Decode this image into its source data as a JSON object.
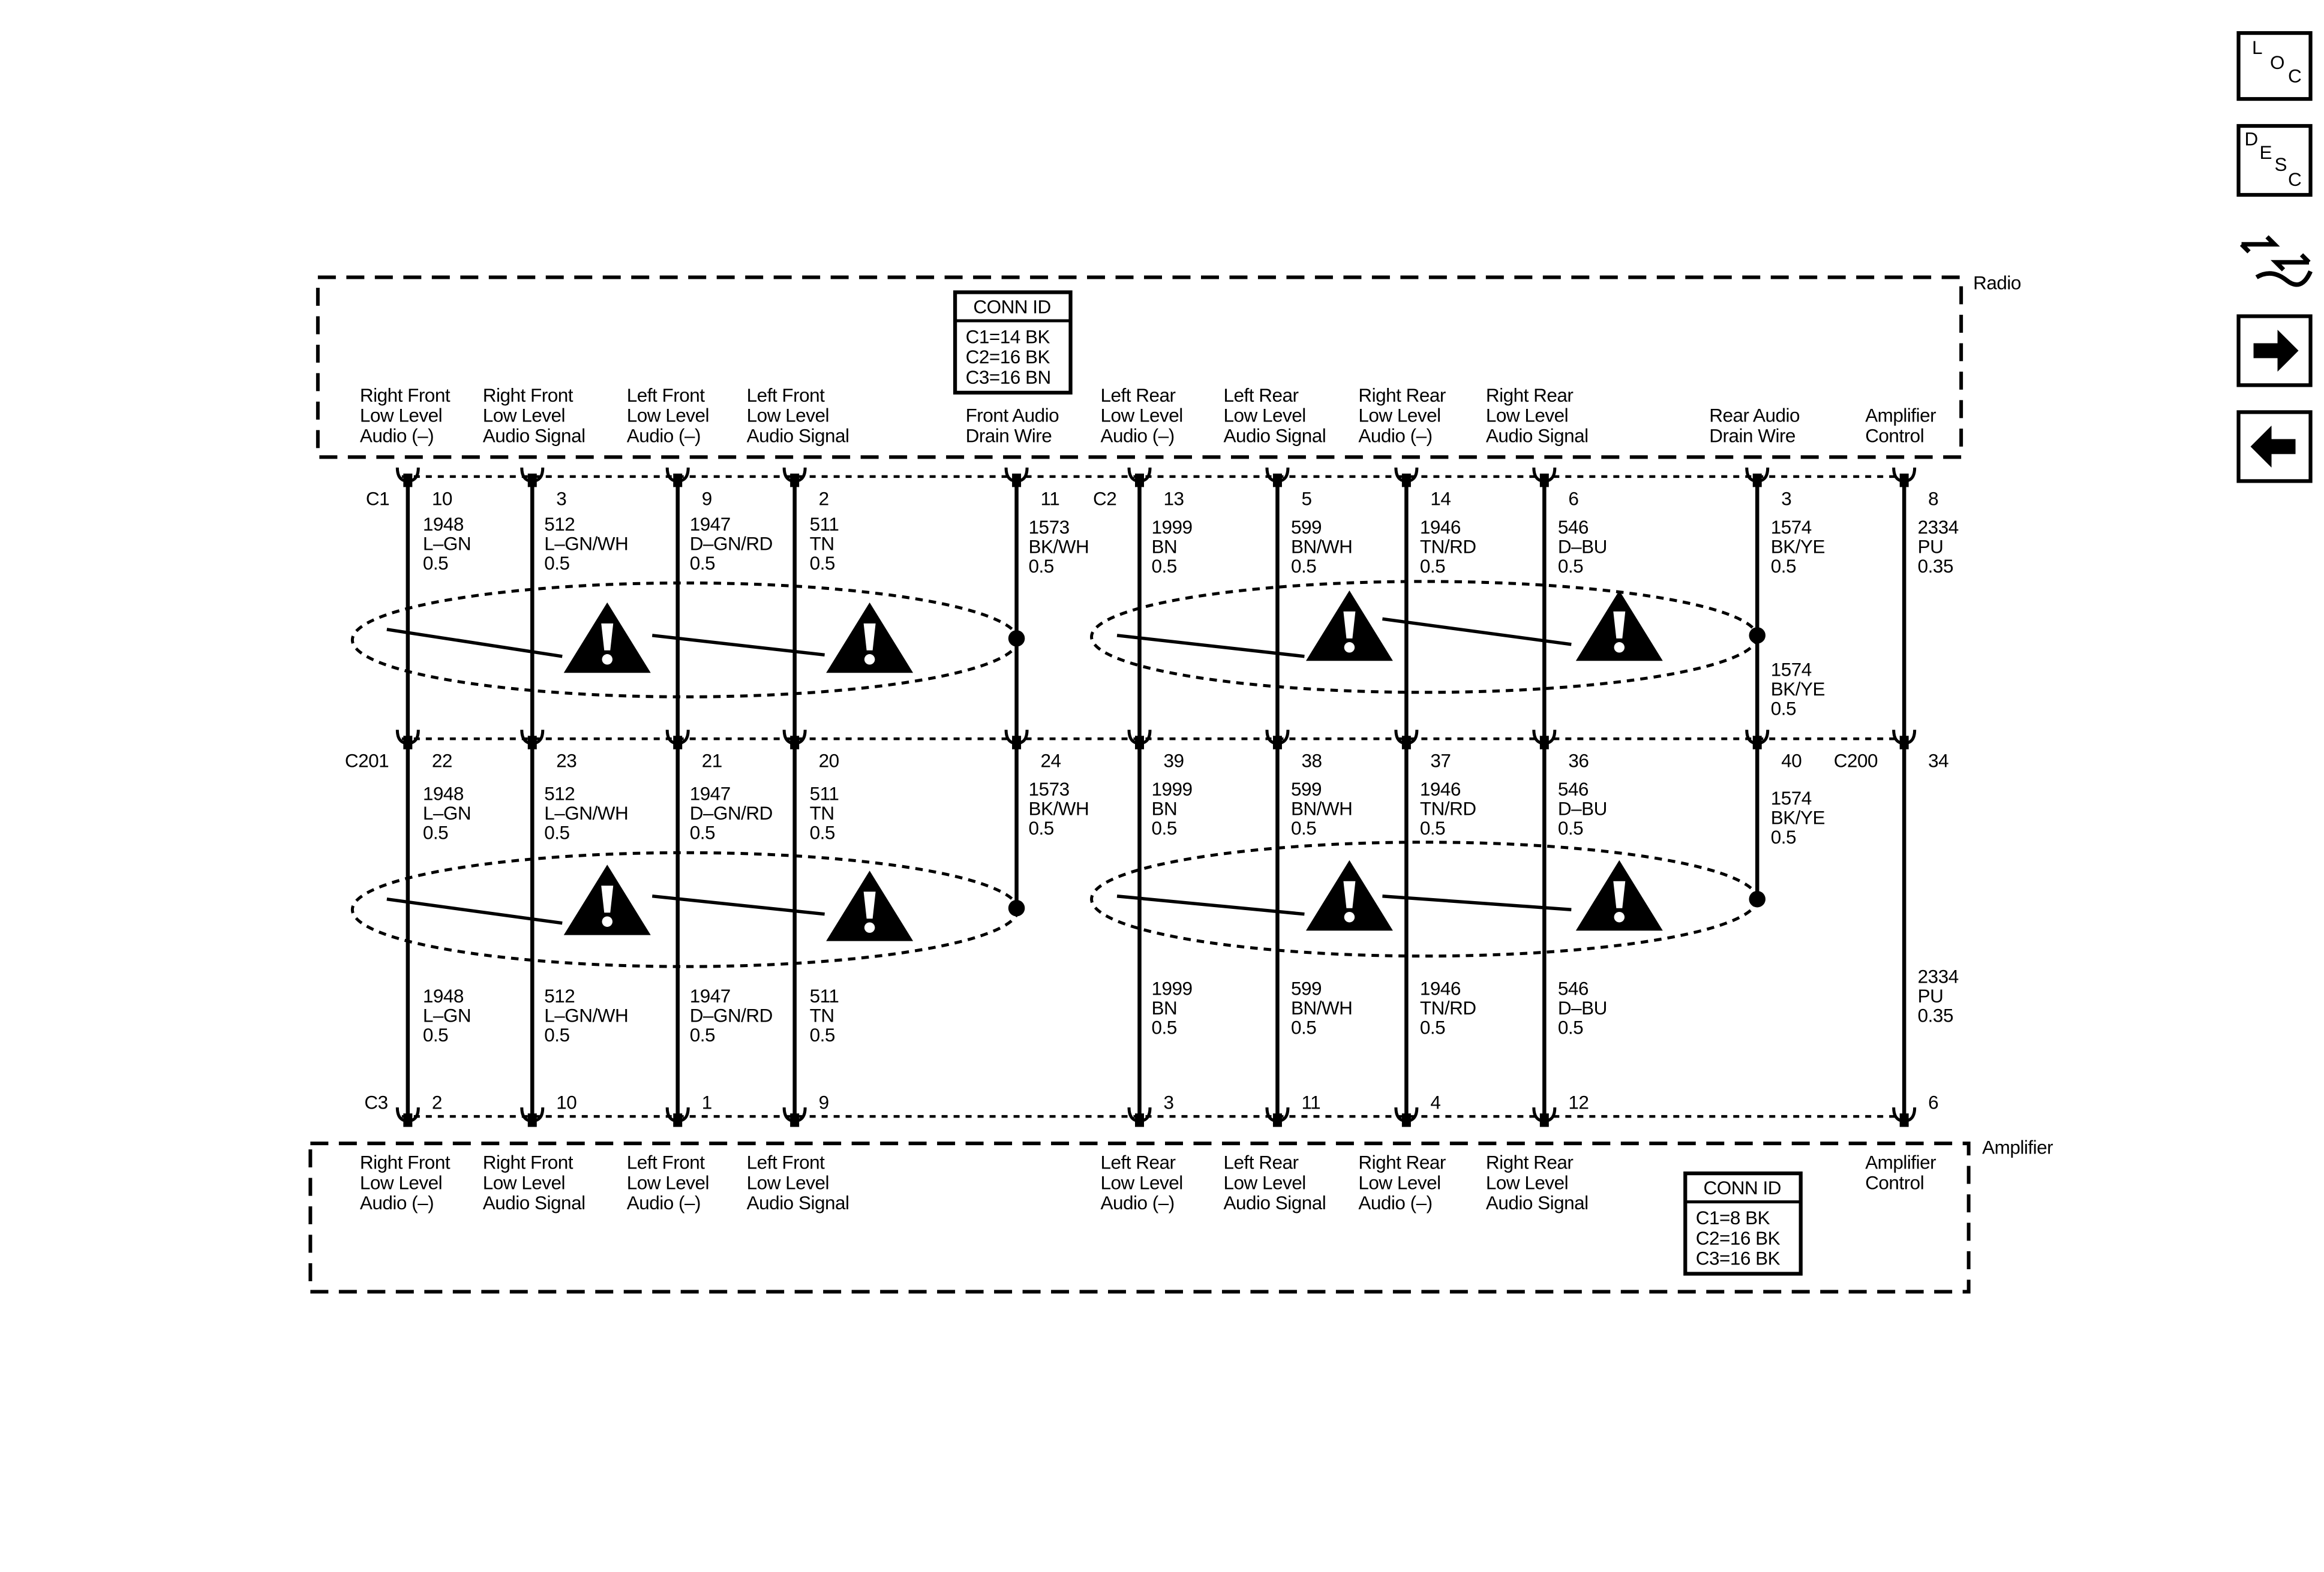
{
  "radio": {
    "name": "Radio",
    "conn_id": {
      "title": "CONN ID",
      "rows": [
        "C1=14 BK",
        "C2=16 BK",
        "C3=16 BN"
      ]
    }
  },
  "amplifier": {
    "name": "Amplifier",
    "conn_id": {
      "title": "CONN ID",
      "rows": [
        "C1=8 BK",
        "C2=16 BK",
        "C3=16 BK"
      ]
    }
  },
  "connectors": {
    "c1": "C1",
    "c2": "C2",
    "c201": "C201",
    "c200": "C200",
    "c3": "C3"
  },
  "circuits": [
    {
      "radio_label": [
        "Right Front",
        "Low Level",
        "Audio (–)"
      ],
      "radio_pin": "10",
      "mid_pin": "22",
      "amp_pin": "2",
      "amp_label": [
        "Right Front",
        "Low Level",
        "Audio (–)"
      ],
      "wires": [
        [
          "1948",
          "L–GN",
          "0.5"
        ],
        [
          "1948",
          "L–GN",
          "0.5"
        ],
        [
          "1948",
          "L–GN",
          "0.5"
        ]
      ]
    },
    {
      "radio_label": [
        "Right Front",
        "Low Level",
        "Audio Signal"
      ],
      "radio_pin": "3",
      "mid_pin": "23",
      "amp_pin": "10",
      "amp_label": [
        "Right Front",
        "Low Level",
        "Audio Signal"
      ],
      "wires": [
        [
          "512",
          "L–GN/WH",
          "0.5"
        ],
        [
          "512",
          "L–GN/WH",
          "0.5"
        ],
        [
          "512",
          "L–GN/WH",
          "0.5"
        ]
      ]
    },
    {
      "radio_label": [
        "Left Front",
        "Low Level",
        "Audio (–)"
      ],
      "radio_pin": "9",
      "mid_pin": "21",
      "amp_pin": "1",
      "amp_label": [
        "Left Front",
        "Low Level",
        "Audio (–)"
      ],
      "wires": [
        [
          "1947",
          "D–GN/RD",
          "0.5"
        ],
        [
          "1947",
          "D–GN/RD",
          "0.5"
        ],
        [
          "1947",
          "D–GN/RD",
          "0.5"
        ]
      ]
    },
    {
      "radio_label": [
        "Left Front",
        "Low Level",
        "Audio Signal"
      ],
      "radio_pin": "2",
      "mid_pin": "20",
      "amp_pin": "9",
      "amp_label": [
        "Left Front",
        "Low Level",
        "Audio Signal"
      ],
      "wires": [
        [
          "511",
          "TN",
          "0.5"
        ],
        [
          "511",
          "TN",
          "0.5"
        ],
        [
          "511",
          "TN",
          "0.5"
        ]
      ]
    },
    {
      "radio_label": [
        "Front Audio",
        "Drain Wire"
      ],
      "radio_pin": "11",
      "mid_pin": "24",
      "wires": [
        [
          "1573",
          "BK/WH",
          "0.5"
        ],
        [
          "1573",
          "BK/WH",
          "0.5"
        ]
      ]
    },
    {
      "radio_label": [
        "Left Rear",
        "Low Level",
        "Audio (–)"
      ],
      "radio_pin": "13",
      "mid_pin": "39",
      "amp_pin": "3",
      "amp_label": [
        "Left Rear",
        "Low Level",
        "Audio (–)"
      ],
      "wires": [
        [
          "1999",
          "BN",
          "0.5"
        ],
        [
          "1999",
          "BN",
          "0.5"
        ],
        [
          "1999",
          "BN",
          "0.5"
        ]
      ]
    },
    {
      "radio_label": [
        "Left Rear",
        "Low Level",
        "Audio Signal"
      ],
      "radio_pin": "5",
      "mid_pin": "38",
      "amp_pin": "11",
      "amp_label": [
        "Left Rear",
        "Low Level",
        "Audio Signal"
      ],
      "wires": [
        [
          "599",
          "BN/WH",
          "0.5"
        ],
        [
          "599",
          "BN/WH",
          "0.5"
        ],
        [
          "599",
          "BN/WH",
          "0.5"
        ]
      ]
    },
    {
      "radio_label": [
        "Right Rear",
        "Low Level",
        "Audio (–)"
      ],
      "radio_pin": "14",
      "mid_pin": "37",
      "amp_pin": "4",
      "amp_label": [
        "Right Rear",
        "Low Level",
        "Audio (–)"
      ],
      "wires": [
        [
          "1946",
          "TN/RD",
          "0.5"
        ],
        [
          "1946",
          "TN/RD",
          "0.5"
        ],
        [
          "1946",
          "TN/RD",
          "0.5"
        ]
      ]
    },
    {
      "radio_label": [
        "Right Rear",
        "Low Level",
        "Audio Signal"
      ],
      "radio_pin": "6",
      "mid_pin": "36",
      "amp_pin": "12",
      "amp_label": [
        "Right Rear",
        "Low Level",
        "Audio Signal"
      ],
      "wires": [
        [
          "546",
          "D–BU",
          "0.5"
        ],
        [
          "546",
          "D–BU",
          "0.5"
        ],
        [
          "546",
          "D–BU",
          "0.5"
        ]
      ]
    },
    {
      "radio_label": [
        "Rear Audio",
        "Drain Wire"
      ],
      "radio_pin": "3",
      "mid_pin": "40",
      "wires": [
        [
          "1574",
          "BK/YE",
          "0.5"
        ],
        [
          "1574",
          "BK/YE",
          "0.5"
        ],
        [
          "1574",
          "BK/YE",
          "0.5"
        ]
      ]
    },
    {
      "radio_label": [
        "Amplifier",
        "Control"
      ],
      "radio_pin": "8",
      "mid_pin": "34",
      "amp_pin": "6",
      "amp_label": [
        "Amplifier",
        "Control"
      ],
      "wires": [
        [
          "2334",
          "PU",
          "0.35"
        ],
        [
          "2334",
          "PU",
          "0.35"
        ]
      ]
    }
  ],
  "nav": {
    "loc": [
      "L",
      "O",
      "C"
    ],
    "desc": [
      "D",
      "E",
      "S",
      "C"
    ]
  }
}
